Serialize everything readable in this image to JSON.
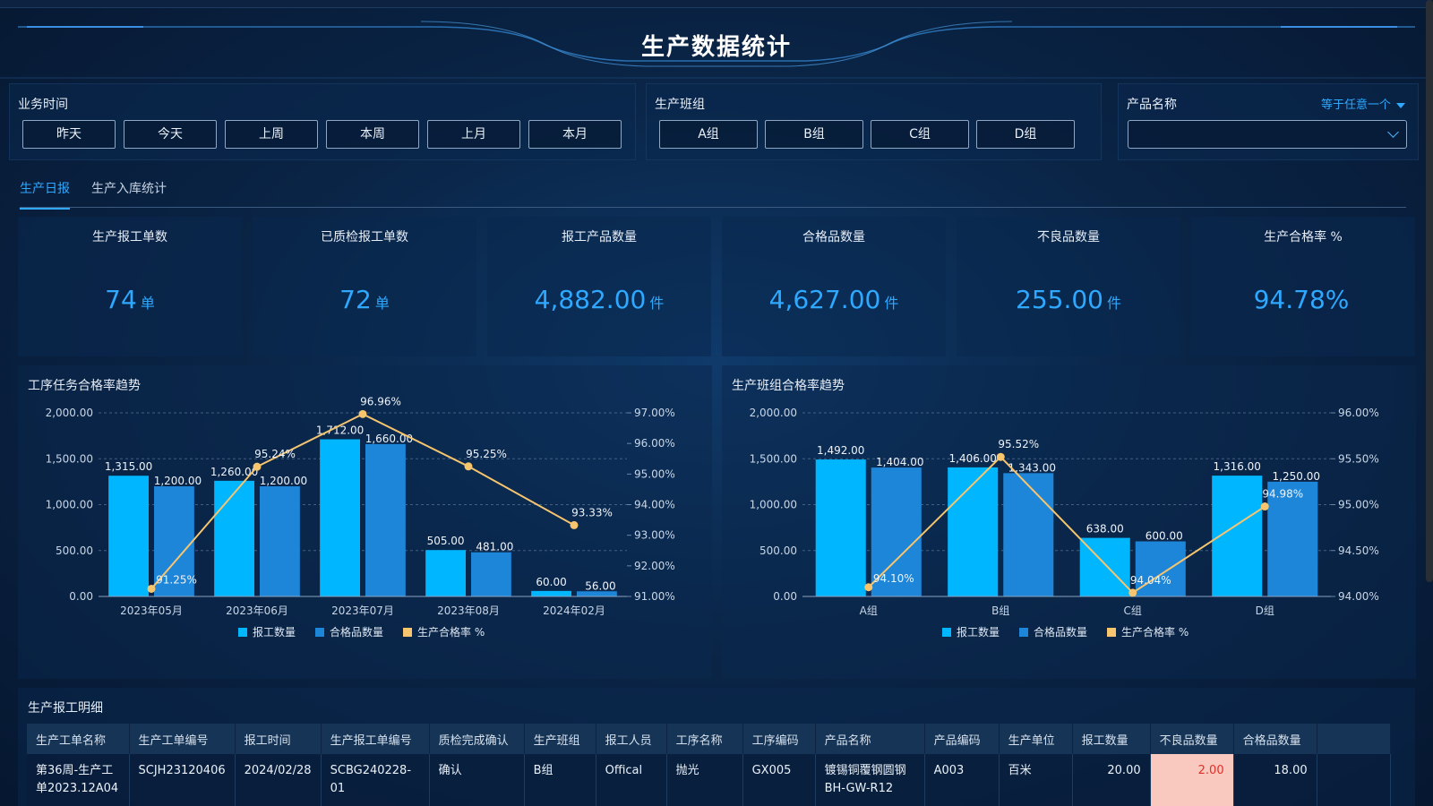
{
  "header": {
    "title": "生产数据统计"
  },
  "filters": {
    "time": {
      "label": "业务时间",
      "options": [
        "昨天",
        "今天",
        "上周",
        "本周",
        "上月",
        "本月"
      ]
    },
    "team": {
      "label": "生产班组",
      "options": [
        "A组",
        "B组",
        "C组",
        "D组"
      ]
    },
    "product": {
      "label": "产品名称",
      "operator": "等于任意一个",
      "value": ""
    }
  },
  "tabs": [
    {
      "label": "生产日报",
      "active": true
    },
    {
      "label": "生产入库统计",
      "active": false
    }
  ],
  "kpis": [
    {
      "label": "生产报工单数",
      "value": "74",
      "unit": "单"
    },
    {
      "label": "已质检报工单数",
      "value": "72",
      "unit": "单"
    },
    {
      "label": "报工产品数量",
      "value": "4,882.00",
      "unit": "件"
    },
    {
      "label": "合格品数量",
      "value": "4,627.00",
      "unit": "件"
    },
    {
      "label": "不良品数量",
      "value": "255.00",
      "unit": "件"
    },
    {
      "label": "生产合格率 %",
      "value": "94.78%",
      "unit": ""
    }
  ],
  "colors": {
    "series1": "#00b7ff",
    "series2": "#1e86d8",
    "line": "#f6c56e",
    "accent": "#2fa8ff"
  },
  "chart_data": [
    {
      "type": "bar",
      "title": "工序任务合格率趋势",
      "categories": [
        "2023年05月",
        "2023年06月",
        "2023年07月",
        "2023年08月",
        "2024年02月"
      ],
      "series": [
        {
          "name": "报工数量",
          "kind": "bar",
          "axis": "left",
          "values": [
            1315,
            1260,
            1712,
            505,
            60
          ],
          "labels": [
            "1,315.00",
            "1,260.00",
            "1,712.00",
            "505.00",
            "60.00"
          ]
        },
        {
          "name": "合格品数量",
          "kind": "bar",
          "axis": "left",
          "values": [
            1200,
            1200,
            1660,
            481,
            56
          ],
          "labels": [
            "1,200.00",
            "1,200.00",
            "1,660.00",
            "481.00",
            "56.00"
          ]
        },
        {
          "name": "生产合格率 %",
          "kind": "line",
          "axis": "right",
          "values": [
            91.25,
            95.24,
            96.96,
            95.25,
            93.33
          ],
          "labels": [
            "91.25%",
            "95.24%",
            "96.96%",
            "95.25%",
            "93.33%"
          ]
        }
      ],
      "yleft": {
        "min": 0,
        "max": 2000,
        "ticks": [
          "0.00",
          "500.00",
          "1,000.00",
          "1,500.00",
          "2,000.00"
        ]
      },
      "yright": {
        "min": 91,
        "max": 97,
        "ticks": [
          "91.00%",
          "92.00%",
          "93.00%",
          "94.00%",
          "95.00%",
          "96.00%",
          "97.00%"
        ]
      },
      "legend": "bottom-center"
    },
    {
      "type": "bar",
      "title": "生产班组合格率趋势",
      "categories": [
        "A组",
        "B组",
        "C组",
        "D组"
      ],
      "series": [
        {
          "name": "报工数量",
          "kind": "bar",
          "axis": "left",
          "values": [
            1492,
            1406,
            638,
            1316
          ],
          "labels": [
            "1,492.00",
            "1,406.00",
            "638.00",
            "1,316.00"
          ]
        },
        {
          "name": "合格品数量",
          "kind": "bar",
          "axis": "left",
          "values": [
            1404,
            1343,
            600,
            1250
          ],
          "labels": [
            "1,404.00",
            "1,343.00",
            "600.00",
            "1,250.00"
          ]
        },
        {
          "name": "生产合格率 %",
          "kind": "line",
          "axis": "right",
          "values": [
            94.1,
            95.52,
            94.04,
            94.98
          ],
          "labels": [
            "94.10%",
            "95.52%",
            "94.04%",
            "94.98%"
          ]
        }
      ],
      "yleft": {
        "min": 0,
        "max": 2000,
        "ticks": [
          "0.00",
          "500.00",
          "1,000.00",
          "1,500.00",
          "2,000.00"
        ]
      },
      "yright": {
        "min": 94,
        "max": 96,
        "ticks": [
          "94.00%",
          "94.50%",
          "95.00%",
          "95.50%",
          "96.00%"
        ]
      },
      "legend": "bottom-center"
    }
  ],
  "table": {
    "title": "生产报工明细",
    "columns": [
      "生产工单名称",
      "生产工单编号",
      "报工时间",
      "生产报工单编号",
      "质检完成确认",
      "生产班组",
      "报工人员",
      "工序名称",
      "工序编码",
      "产品名称",
      "产品编码",
      "生产单位",
      "报工数量",
      "不良品数量",
      "合格品数量"
    ],
    "rows": [
      [
        "第36周-生产工单2023.12A04",
        "SCJH23120406",
        "2024/02/28",
        "SCBG240228-01",
        "确认",
        "B组",
        "Offical",
        "抛光",
        "GX005",
        "镀锡铜覆钢圆钢BH-GW-R12",
        "A003",
        "百米",
        "20.00",
        "2.00",
        "18.00"
      ]
    ]
  }
}
